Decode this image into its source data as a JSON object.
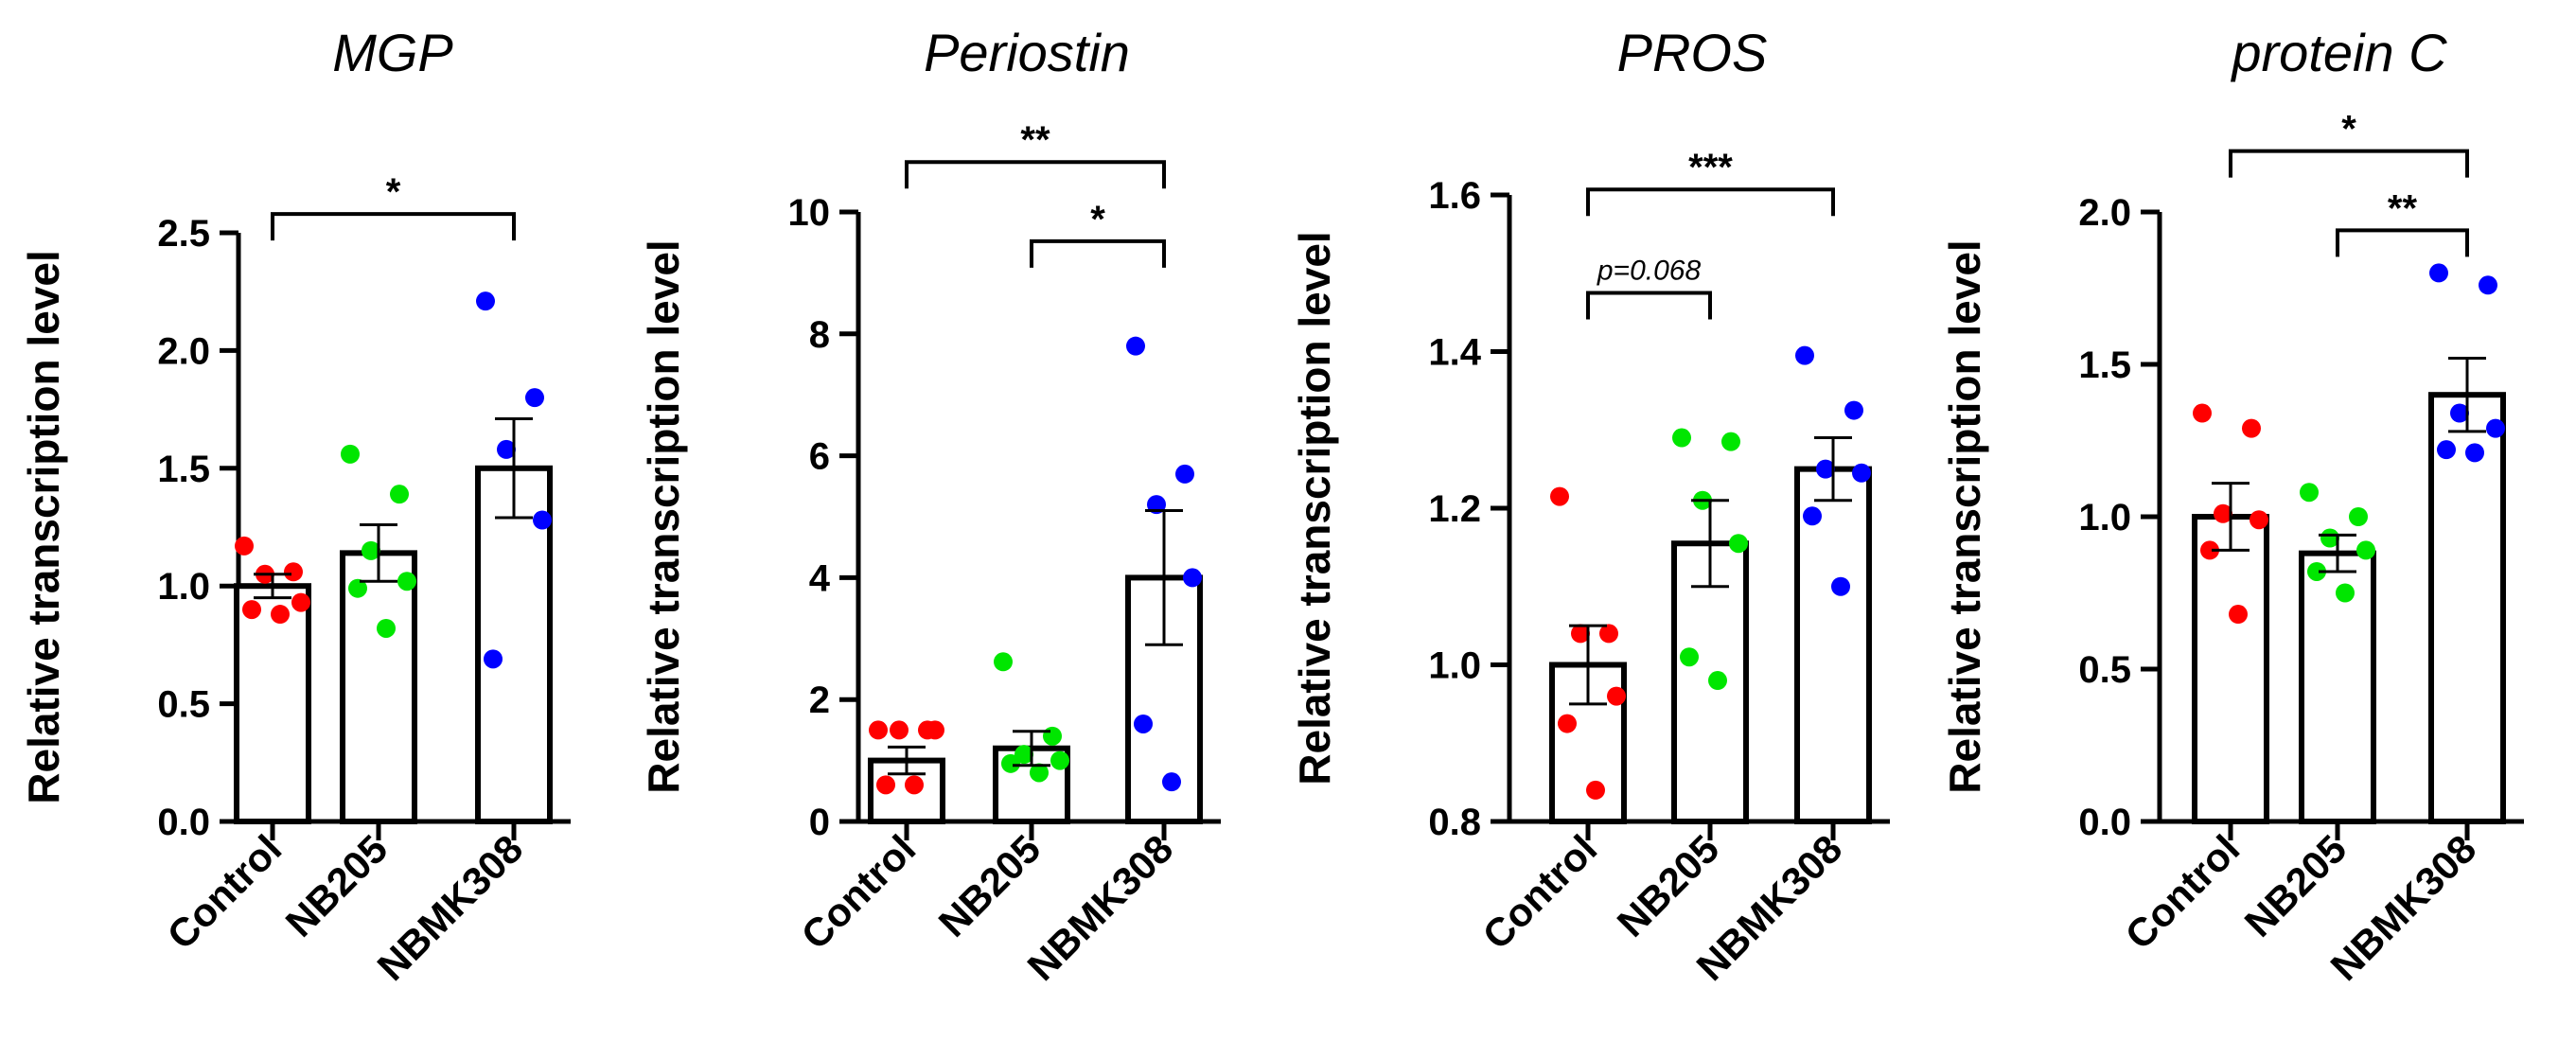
{
  "colors": {
    "groups": [
      "#ff0000",
      "#00e600",
      "#0000ff"
    ],
    "axis": "#000000",
    "bar_fill": "#ffffff"
  },
  "chart_data": [
    {
      "type": "bar",
      "title": "MGP",
      "ylabel": "Relative transcription level",
      "categories": [
        "Control",
        "NB205",
        "NBMK308"
      ],
      "ylim": [
        0,
        2.5
      ],
      "yticks": [
        0,
        0.5,
        1.0,
        1.5,
        2.0,
        2.5
      ],
      "tick_labels": [
        "0.0",
        "0.5",
        "1.0",
        "1.5",
        "2.0",
        "2.5"
      ],
      "means": [
        1.0,
        1.14,
        1.5
      ],
      "sem": [
        0.05,
        0.12,
        0.21
      ],
      "points": [
        [
          1.17,
          1.06,
          1.05,
          0.93,
          0.9,
          0.88
        ],
        [
          1.56,
          1.39,
          1.15,
          1.02,
          0.99,
          0.82
        ],
        [
          2.21,
          1.8,
          1.58,
          1.28,
          0.69
        ]
      ],
      "significance": [
        {
          "from": 0,
          "to": 2,
          "label": "*",
          "y": 2.58
        }
      ]
    },
    {
      "type": "bar",
      "title": "Periostin",
      "ylabel": "Relative transcription level",
      "categories": [
        "Control",
        "NB205",
        "NBMK308"
      ],
      "ylim": [
        0,
        10
      ],
      "yticks": [
        0,
        2,
        4,
        6,
        8,
        10
      ],
      "tick_labels": [
        "0",
        "2",
        "4",
        "6",
        "8",
        "10"
      ],
      "means": [
        1.0,
        1.2,
        4.0
      ],
      "sem": [
        0.22,
        0.28,
        1.1
      ],
      "points": [
        [
          1.5,
          1.5,
          1.5,
          1.5,
          0.6,
          0.6
        ],
        [
          2.62,
          1.4,
          1.1,
          1.0,
          0.95,
          0.8
        ],
        [
          7.8,
          5.7,
          5.2,
          4.0,
          1.6,
          0.65
        ]
      ],
      "significance": [
        {
          "from": 0,
          "to": 2,
          "label": "**",
          "y": 10.82
        },
        {
          "from": 1,
          "to": 2,
          "label": "*",
          "y": 9.52
        }
      ]
    },
    {
      "type": "bar",
      "title": "PROS",
      "ylabel": "Relative transcription level",
      "categories": [
        "Control",
        "NB205",
        "NBMK308"
      ],
      "ylim": [
        0.8,
        1.6
      ],
      "yticks": [
        0.8,
        1.0,
        1.2,
        1.4,
        1.6
      ],
      "tick_labels": [
        "0.8",
        "1.0",
        "1.2",
        "1.4",
        "1.6"
      ],
      "means": [
        1.0,
        1.155,
        1.25
      ],
      "sem": [
        0.05,
        0.055,
        0.04
      ],
      "points": [
        [
          1.215,
          1.04,
          1.04,
          0.96,
          0.925,
          0.84
        ],
        [
          1.29,
          1.285,
          1.21,
          1.155,
          1.01,
          0.98
        ],
        [
          1.395,
          1.325,
          1.25,
          1.245,
          1.19,
          1.1
        ]
      ],
      "significance": [
        {
          "from": 0,
          "to": 2,
          "label": "***",
          "y": 1.607
        },
        {
          "from": 0,
          "to": 1,
          "label": "p=0.068",
          "y": 1.475,
          "style": "small"
        }
      ]
    },
    {
      "type": "bar",
      "title": "protein C",
      "ylabel": "Relative transcription level",
      "categories": [
        "Control",
        "NB205",
        "NBMK308"
      ],
      "ylim": [
        0,
        2.0
      ],
      "yticks": [
        0,
        0.5,
        1.0,
        1.5,
        2.0
      ],
      "tick_labels": [
        "0.0",
        "0.5",
        "1.0",
        "1.5",
        "2.0"
      ],
      "means": [
        1.0,
        0.88,
        1.4
      ],
      "sem": [
        0.11,
        0.06,
        0.12
      ],
      "points": [
        [
          1.34,
          1.29,
          1.01,
          0.99,
          0.89,
          0.68
        ],
        [
          1.08,
          1.0,
          0.93,
          0.89,
          0.82,
          0.75
        ],
        [
          1.8,
          1.76,
          1.34,
          1.29,
          1.22,
          1.21
        ]
      ],
      "significance": [
        {
          "from": 0,
          "to": 2,
          "label": "*",
          "y": 2.2
        },
        {
          "from": 1,
          "to": 2,
          "label": "**",
          "y": 1.94
        }
      ]
    }
  ]
}
